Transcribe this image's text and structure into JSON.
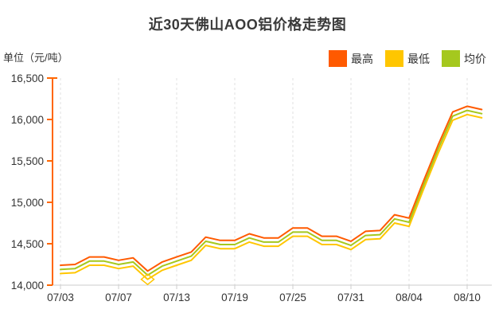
{
  "page": {
    "title": "近30天佛山AOO铝价格走势图",
    "unit_label": "单位（元/吨）"
  },
  "legend": [
    {
      "label": "最高",
      "color": "#ff5a00"
    },
    {
      "label": "最低",
      "color": "#ffc600"
    },
    {
      "label": "均价",
      "color": "#a5c81e"
    }
  ],
  "colors": {
    "axis_y": "#ff6600",
    "axis_x": "#cccccc",
    "grid": "#e0e0e0",
    "title_text": "#3a3a3a",
    "tick_text": "#333333",
    "background": "#ffffff"
  },
  "chart_data": {
    "type": "line",
    "title": "近30天佛山AOO铝价格走势图",
    "unit": "元/吨",
    "x": [
      "07/03",
      "07/04",
      "07/05",
      "07/06",
      "07/07",
      "07/10",
      "07/11",
      "07/12",
      "07/13",
      "07/14",
      "07/17",
      "07/18",
      "07/19",
      "07/20",
      "07/21",
      "07/24",
      "07/25",
      "07/26",
      "07/27",
      "07/28",
      "07/31",
      "08/01",
      "08/02",
      "08/03",
      "08/04",
      "08/07",
      "08/08",
      "08/09",
      "08/10",
      "08/11"
    ],
    "x_tick_labels": [
      "07/03",
      "07/07",
      "07/13",
      "07/19",
      "07/25",
      "07/31",
      "08/04",
      "08/10"
    ],
    "y_tick_labels": [
      "16,500",
      "16,000",
      "15,500",
      "15,000",
      "14,500",
      "14,000"
    ],
    "ylim": [
      14000,
      16500
    ],
    "grid": "vertical-dashed",
    "legend_position": "top-right",
    "series": [
      {
        "name": "最高",
        "color": "#ff5a00",
        "values": [
          14240,
          14250,
          14340,
          14340,
          14300,
          14330,
          14170,
          14280,
          14340,
          14400,
          14580,
          14540,
          14540,
          14620,
          14570,
          14570,
          14690,
          14690,
          14590,
          14590,
          14530,
          14650,
          14660,
          14850,
          14810,
          15260,
          15690,
          16090,
          16160,
          16120
        ]
      },
      {
        "name": "最低",
        "color": "#ffc600",
        "values": [
          14140,
          14150,
          14240,
          14240,
          14200,
          14230,
          14070,
          14180,
          14240,
          14300,
          14480,
          14440,
          14440,
          14520,
          14470,
          14470,
          14590,
          14590,
          14490,
          14490,
          14430,
          14550,
          14560,
          14750,
          14710,
          15160,
          15590,
          15990,
          16060,
          16020
        ]
      },
      {
        "name": "均价",
        "color": "#a5c81e",
        "values": [
          14190,
          14200,
          14290,
          14290,
          14250,
          14280,
          14120,
          14230,
          14290,
          14350,
          14530,
          14490,
          14490,
          14570,
          14520,
          14520,
          14640,
          14640,
          14540,
          14540,
          14480,
          14600,
          14610,
          14800,
          14760,
          15210,
          15640,
          16040,
          16110,
          16070
        ]
      }
    ],
    "min_marker": {
      "series": "最低",
      "x": "07/11",
      "shape": "diamond"
    }
  }
}
